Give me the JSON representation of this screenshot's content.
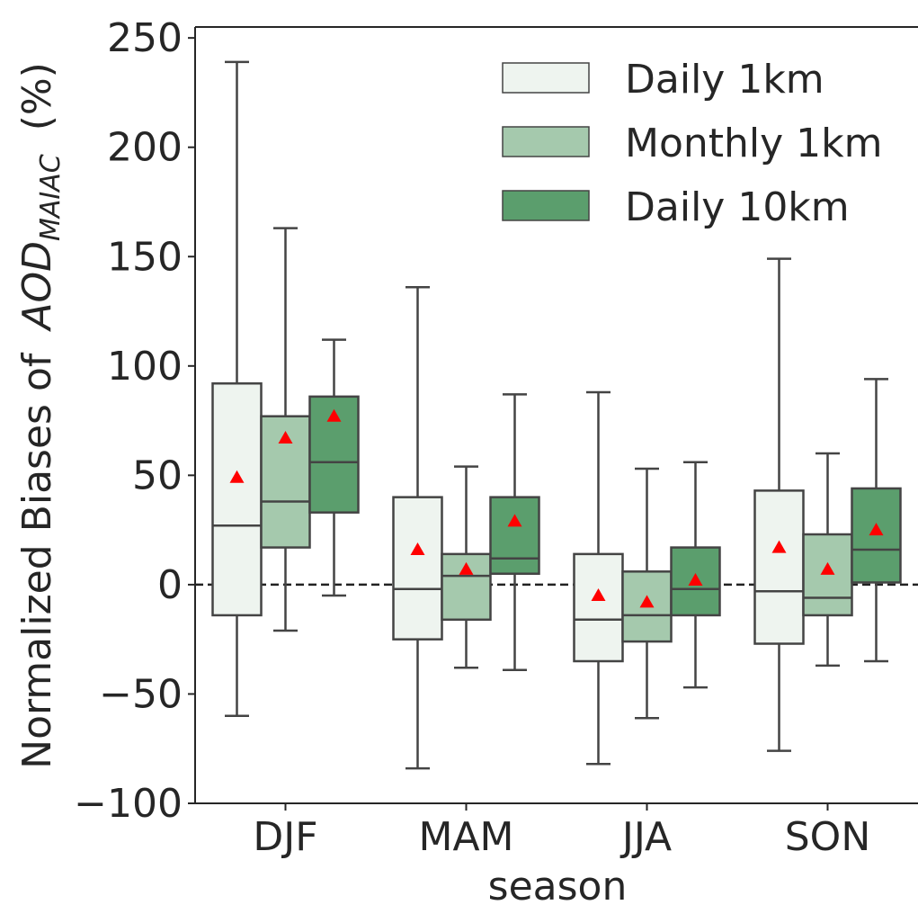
{
  "chart_data": {
    "type": "box",
    "xlabel": "season",
    "ylabel": [
      "Normalized Biases of",
      "AOD",
      "MAIAC",
      "(%)"
    ],
    "categories": [
      "DJF",
      "MAM",
      "JJA",
      "SON"
    ],
    "ylim": [
      -100,
      255
    ],
    "yticks": [
      {
        "value": -100,
        "label": "−100"
      },
      {
        "value": -50,
        "label": "−50"
      },
      0,
      50,
      100,
      150,
      200,
      250
    ],
    "reference_line": 0,
    "legend": "upper right",
    "edge_color": "#444444",
    "mean_color": "#ff0000",
    "series": [
      {
        "name": "Daily 1km",
        "color": "#eef4ef",
        "whisker_low": [
          -60,
          -84,
          -82,
          -76
        ],
        "q1": [
          -14,
          -25,
          -35,
          -27
        ],
        "median": [
          27,
          -2,
          -16,
          -3
        ],
        "q3": [
          92,
          40,
          14,
          43
        ],
        "whisker_high": [
          239,
          136,
          88,
          149
        ],
        "mean": [
          49,
          16,
          -5,
          17
        ]
      },
      {
        "name": "Monthly 1km",
        "color": "#a5c9ad",
        "whisker_low": [
          -21,
          -38,
          -61,
          -37
        ],
        "q1": [
          17,
          -16,
          -26,
          -14
        ],
        "median": [
          38,
          4,
          -14,
          -6
        ],
        "q3": [
          77,
          14,
          6,
          23
        ],
        "whisker_high": [
          163,
          54,
          53,
          60
        ],
        "mean": [
          67,
          7,
          -8,
          7
        ]
      },
      {
        "name": "Daily 10km",
        "color": "#5b9e6d",
        "whisker_low": [
          -5,
          -39,
          -47,
          -35
        ],
        "q1": [
          33,
          5,
          -14,
          1
        ],
        "median": [
          56,
          12,
          -2,
          16
        ],
        "q3": [
          86,
          40,
          17,
          44
        ],
        "whisker_high": [
          112,
          87,
          56,
          94
        ],
        "mean": [
          77,
          29,
          2,
          25
        ]
      }
    ]
  }
}
